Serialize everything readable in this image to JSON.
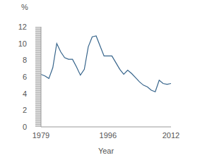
{
  "chart_data": {
    "type": "line",
    "y_label": "%",
    "x_label": "Year",
    "x": [
      1979,
      1980,
      1981,
      1982,
      1983,
      1984,
      1985,
      1986,
      1987,
      1988,
      1989,
      1990,
      1991,
      1992,
      1993,
      1994,
      1995,
      1996,
      1997,
      1998,
      1999,
      2000,
      2001,
      2002,
      2003,
      2004,
      2005,
      2006,
      2007,
      2008,
      2009,
      2010,
      2011,
      2012
    ],
    "values": [
      6.3,
      6.1,
      5.8,
      7.1,
      10.0,
      9.0,
      8.3,
      8.1,
      8.1,
      7.2,
      6.2,
      6.9,
      9.6,
      10.8,
      10.9,
      9.7,
      8.5,
      8.5,
      8.5,
      7.7,
      6.9,
      6.3,
      6.8,
      6.4,
      5.9,
      5.4,
      5.0,
      4.8,
      4.4,
      4.2,
      5.6,
      5.2,
      5.1,
      5.2
    ],
    "color": "#36648b",
    "xlim": [
      1979,
      2012
    ],
    "xticks": [
      1979,
      1996,
      2012
    ],
    "ylim": [
      0,
      12
    ],
    "yticks": [
      0,
      2,
      4,
      6,
      8,
      10,
      12
    ],
    "grid": false
  }
}
